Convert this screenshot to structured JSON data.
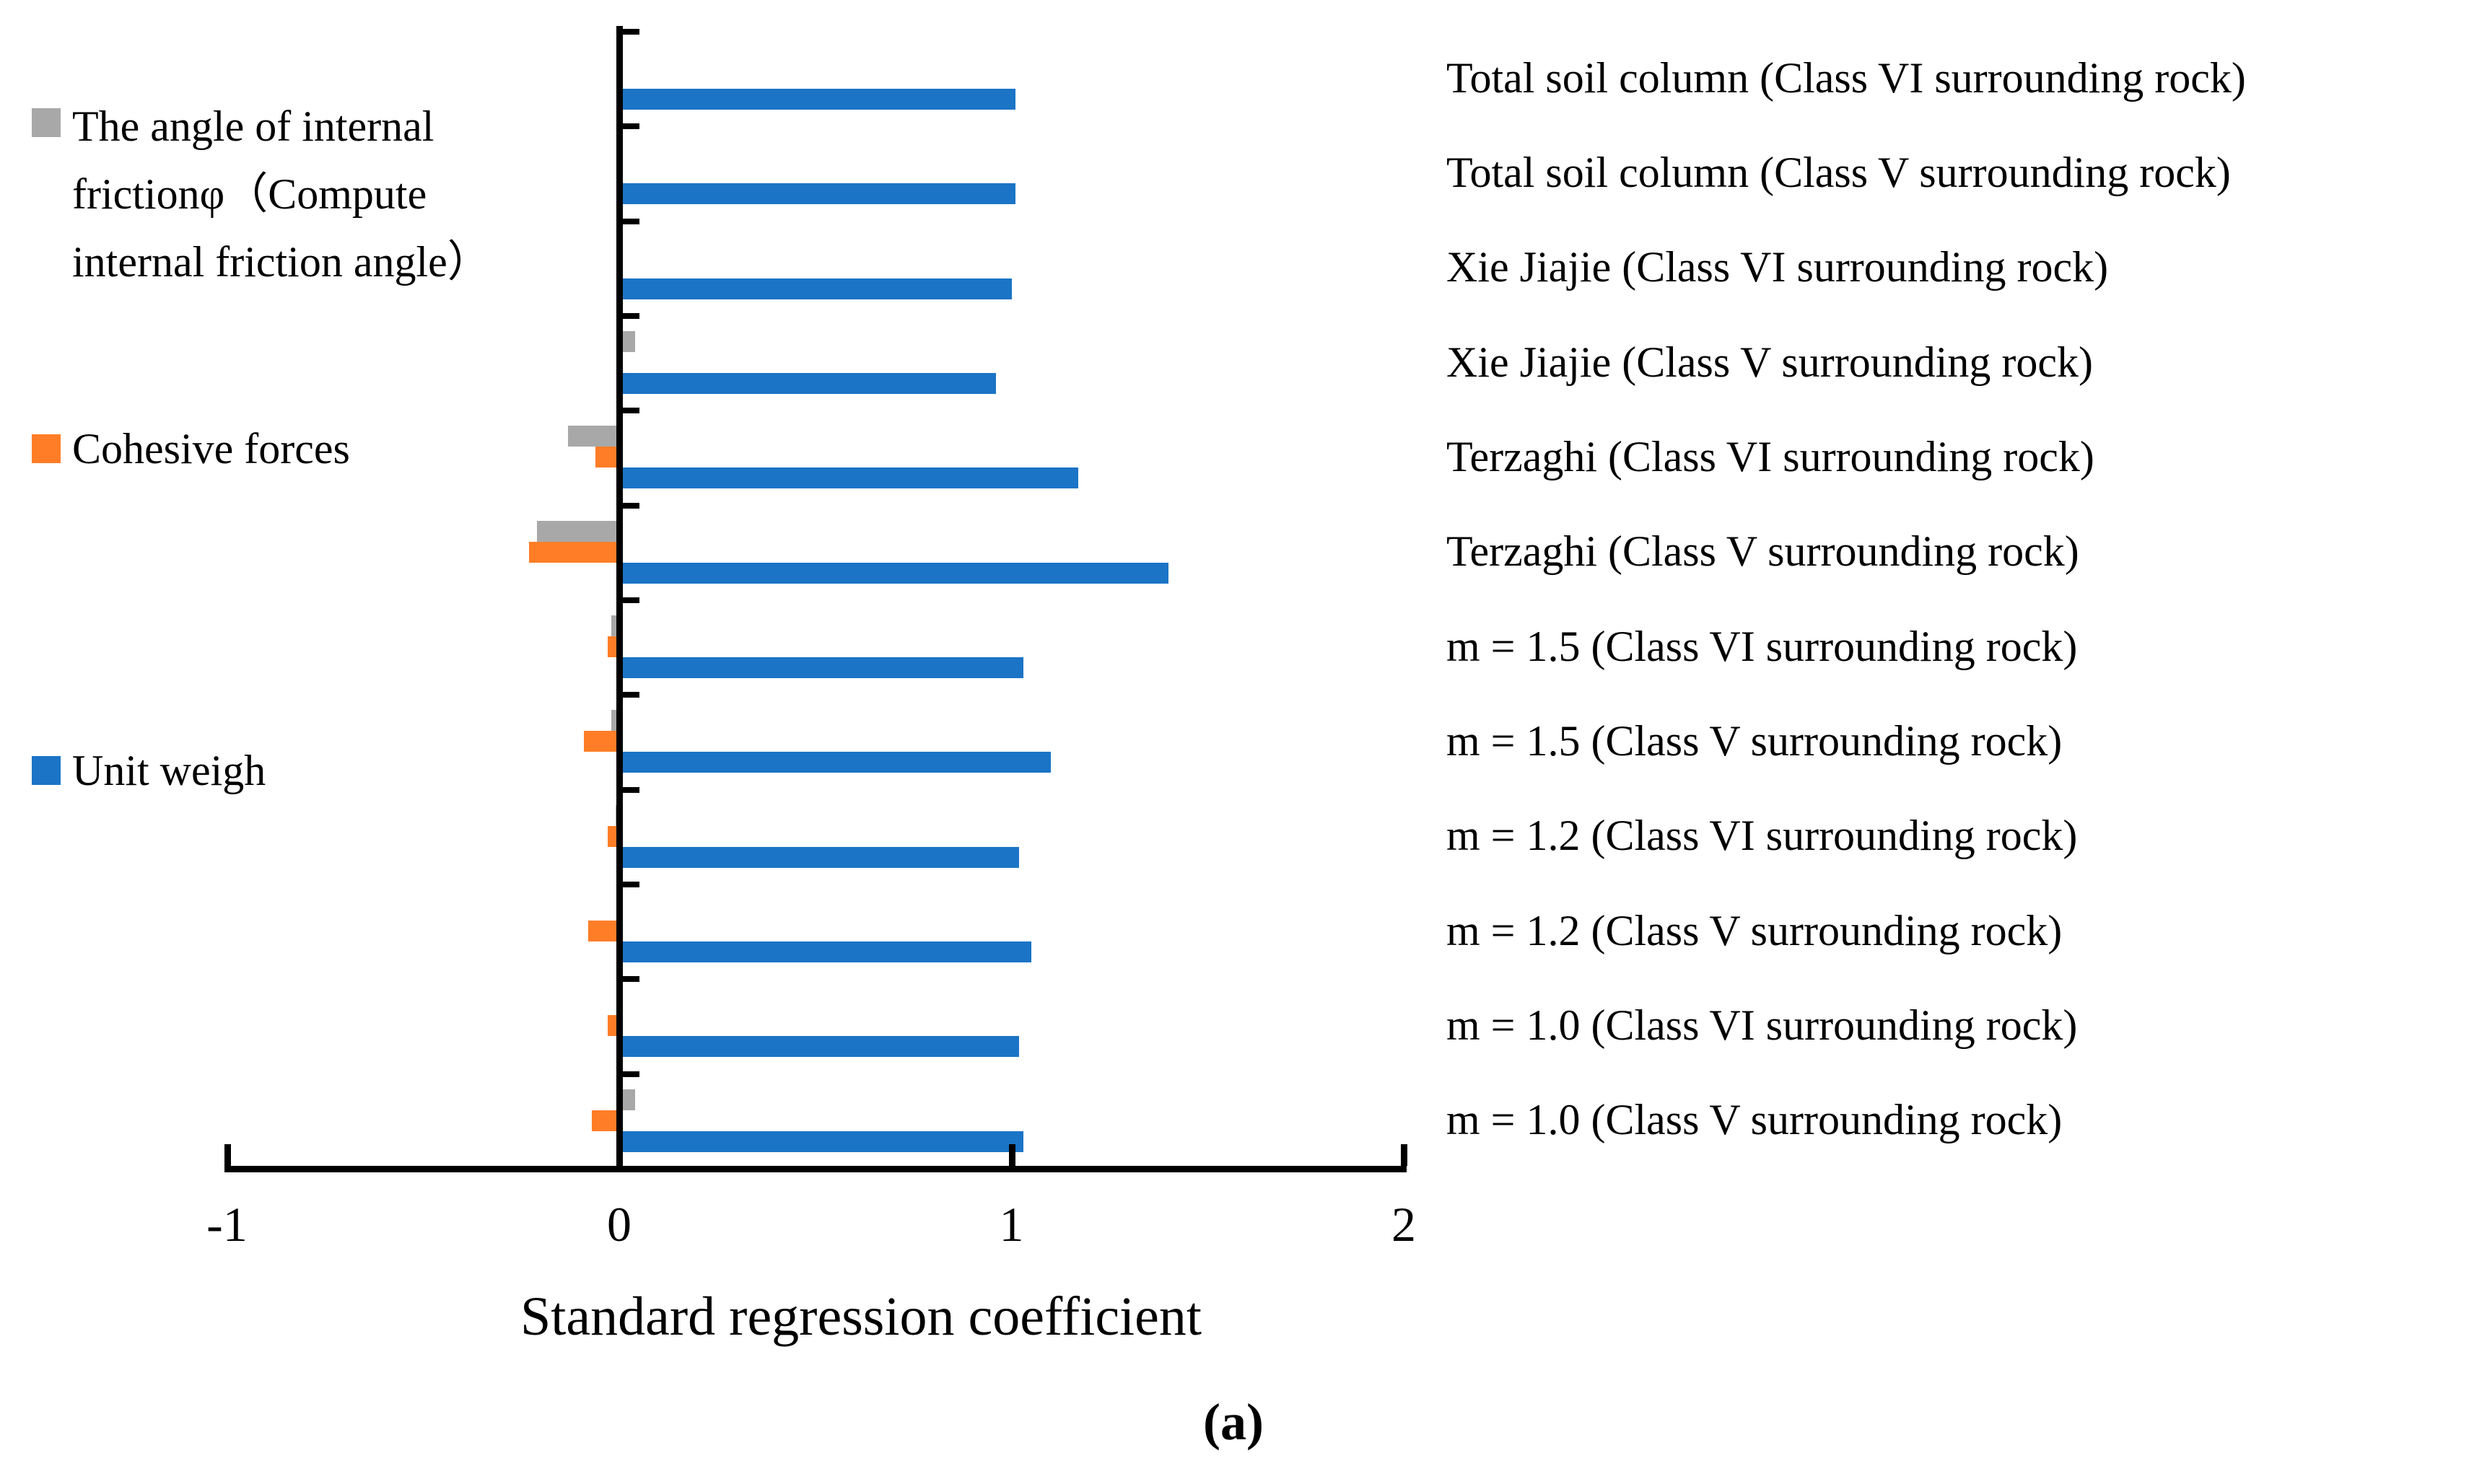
{
  "chart_data": {
    "type": "bar",
    "orientation": "horizontal",
    "xlabel": "Standard regression coefficient",
    "caption": "(a)",
    "xlim": [
      -1,
      2
    ],
    "x_ticks": [
      {
        "label": "-1",
        "value": -1
      },
      {
        "label": "0",
        "value": 0
      },
      {
        "label": "1",
        "value": 1
      },
      {
        "label": "2",
        "value": 2
      }
    ],
    "grid": false,
    "legend_position": "left",
    "axis_color": "#000000",
    "categories": [
      "Total soil column (Class VI surrounding rock)",
      "Total soil column (Class V surrounding rock)",
      "Xie Jiajie (Class VI surrounding rock)",
      "Xie Jiajie (Class V surrounding rock)",
      "Terzaghi (Class VI surrounding rock)",
      "Terzaghi (Class V surrounding rock)",
      "m = 1.5 (Class VI surrounding rock)",
      "m = 1.5 (Class V surrounding rock)",
      "m = 1.2 (Class VI surrounding rock)",
      "m = 1.2 (Class V surrounding rock)",
      "m = 1.0 (Class VI surrounding rock)",
      "m = 1.0 (Class V surrounding rock)"
    ],
    "series": [
      {
        "key": "angle",
        "name": "The angle of internal frictionφ（Compute internal friction angle）",
        "color": "#A8A8A8",
        "values": [
          0,
          0,
          0.01,
          0.04,
          -0.13,
          -0.21,
          -0.02,
          -0.02,
          -0.01,
          0.01,
          0,
          0.04
        ]
      },
      {
        "key": "cohesive",
        "name": "Cohesive forces",
        "color": "#FF7D27",
        "values": [
          0,
          0,
          0,
          0,
          -0.06,
          -0.23,
          -0.03,
          -0.09,
          -0.03,
          -0.08,
          -0.03,
          -0.07
        ]
      },
      {
        "key": "unitweigh",
        "name": "Unit weigh",
        "color": "#1B74C6",
        "values": [
          1.01,
          1.01,
          1.0,
          0.96,
          1.17,
          1.4,
          1.03,
          1.1,
          1.02,
          1.05,
          1.02,
          1.03
        ]
      }
    ]
  }
}
